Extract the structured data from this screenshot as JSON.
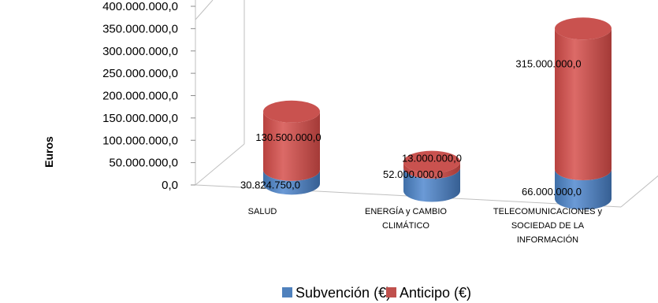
{
  "chart_data": {
    "type": "bar",
    "style": "3d-cylinder-stacked",
    "ylabel": "Euros",
    "ylim": [
      0,
      400000000
    ],
    "ytick_labels": [
      "0,0",
      "50.000.000,0",
      "100.000.000,0",
      "150.000.000,0",
      "200.000.000,0",
      "250.000.000,0",
      "300.000.000,0",
      "350.000.000,0",
      "400.000.000,0"
    ],
    "ytick_values": [
      0,
      50000000,
      100000000,
      150000000,
      200000000,
      250000000,
      300000000,
      350000000,
      400000000
    ],
    "categories": [
      [
        "SALUD"
      ],
      [
        "ENERGÍA y CAMBIO",
        "CLIMÁTICO"
      ],
      [
        "TELECOMUNICACIONES y",
        "SOCIEDAD DE LA",
        "INFORMACIÓN"
      ]
    ],
    "series": [
      {
        "name": "Subvención (€)",
        "color": "#4f81bd",
        "values": [
          30824750,
          52000000,
          66000000
        ],
        "labels": [
          "30.824.750,0",
          "52.000.000,0",
          "66.000.000,0"
        ]
      },
      {
        "name": "Anticipo (€)",
        "color": "#c0504d",
        "values": [
          130500000,
          13000000,
          315000000
        ],
        "labels": [
          "130.500.000,0",
          "13.000.000,0",
          "315.000.000,0"
        ]
      }
    ],
    "grid": false,
    "legend": "bottom"
  }
}
